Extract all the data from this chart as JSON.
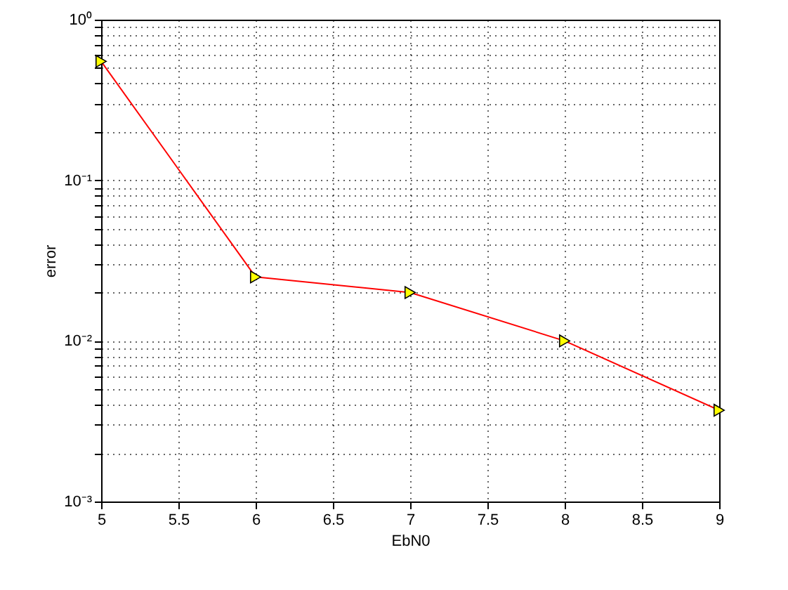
{
  "chart_data": {
    "type": "line",
    "xlabel": "EbN0",
    "ylabel": "error",
    "x": [
      5,
      6,
      7,
      8,
      9
    ],
    "series": [
      {
        "color": "#ff0000",
        "values": [
          0.55,
          0.025,
          0.02,
          0.01,
          0.0037
        ]
      }
    ],
    "xlim": [
      5,
      9
    ],
    "xticks": [
      5,
      5.5,
      6,
      6.5,
      7,
      7.5,
      8,
      8.5,
      9
    ],
    "ylim": [
      0.001,
      1
    ],
    "yticks": [
      {
        "value": 0.001,
        "label": "10⁻³"
      },
      {
        "value": 0.002,
        "label": null
      },
      {
        "value": 0.003,
        "label": null
      },
      {
        "value": 0.004,
        "label": null
      },
      {
        "value": 0.005,
        "label": null
      },
      {
        "value": 0.006,
        "label": null
      },
      {
        "value": 0.007,
        "label": null
      },
      {
        "value": 0.008,
        "label": null
      },
      {
        "value": 0.009,
        "label": null
      },
      {
        "value": 0.01,
        "label": "10⁻²"
      },
      {
        "value": 0.02,
        "label": null
      },
      {
        "value": 0.03,
        "label": null
      },
      {
        "value": 0.04,
        "label": null
      },
      {
        "value": 0.05,
        "label": null
      },
      {
        "value": 0.06,
        "label": null
      },
      {
        "value": 0.07,
        "label": null
      },
      {
        "value": 0.08,
        "label": null
      },
      {
        "value": 0.09,
        "label": null
      },
      {
        "value": 0.1,
        "label": "10⁻¹"
      },
      {
        "value": 0.2,
        "label": null
      },
      {
        "value": 0.3,
        "label": null
      },
      {
        "value": 0.4,
        "label": null
      },
      {
        "value": 0.5,
        "label": null
      },
      {
        "value": 0.6,
        "label": null
      },
      {
        "value": 0.7,
        "label": null
      },
      {
        "value": 0.8,
        "label": null
      },
      {
        "value": 0.9,
        "label": null
      },
      {
        "value": 1,
        "label": "10⁰"
      }
    ],
    "log": true,
    "grid": true,
    "marker": "triangle",
    "line_style": "solid"
  }
}
